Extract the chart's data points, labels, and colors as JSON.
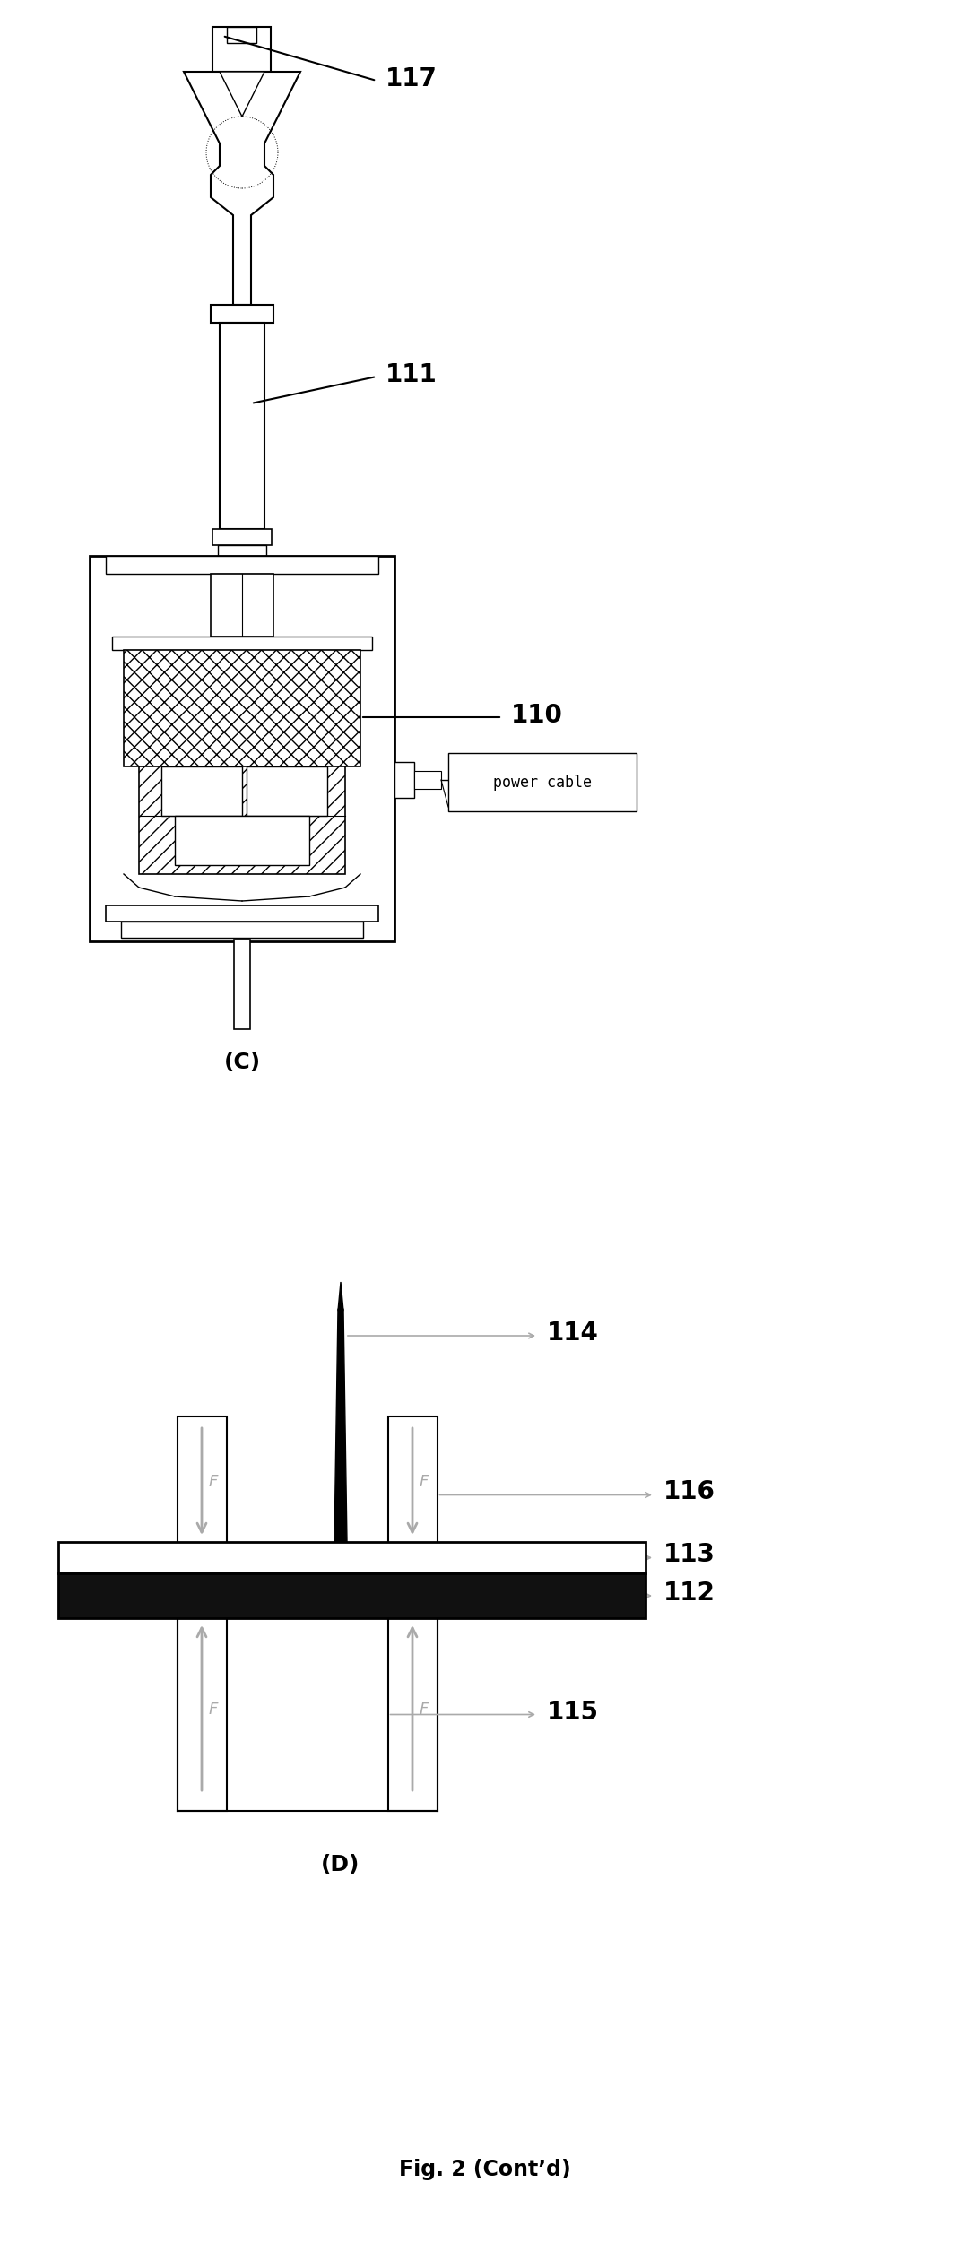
{
  "bg_color": "#ffffff",
  "lc": "#000000",
  "gray_arrow": "#aaaaaa",
  "dark_fill": "#111111",
  "hatch_color": "#444444",
  "label_117": "117",
  "label_111": "111",
  "label_110": "110",
  "label_power_cable": "power cable",
  "label_C": "(C)",
  "label_D": "(D)",
  "label_fig": "Fig. 2 (Cont’d)",
  "label_114": "114",
  "label_116": "116",
  "label_113": "113",
  "label_112": "112",
  "label_115": "115",
  "label_F": "F",
  "fig_width": 1083,
  "fig_height": 2502
}
